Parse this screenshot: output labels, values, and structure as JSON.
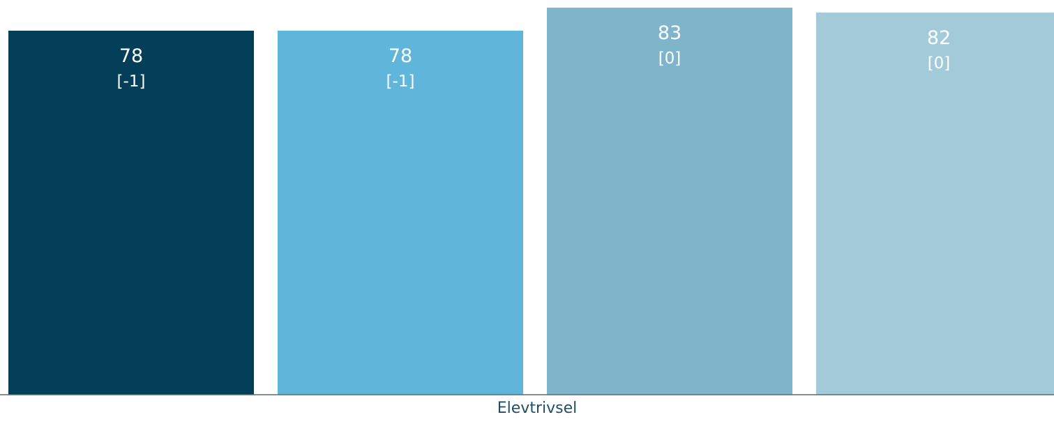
{
  "chart_data": {
    "type": "bar",
    "categories": [
      "Elevtrivsel"
    ],
    "series": [
      {
        "values": [
          78
        ],
        "change_label": "[-1]",
        "color": "#033f59"
      },
      {
        "values": [
          78
        ],
        "change_label": "[-1]",
        "color": "#5fb5da"
      },
      {
        "values": [
          83
        ],
        "change_label": "[0]",
        "color": "#7fb5ca"
      },
      {
        "values": [
          82
        ],
        "change_label": "[0]",
        "color": "#a2cad8"
      }
    ],
    "xlabel": "Elevtrivsel",
    "ylim": [
      0,
      85
    ],
    "grid": false,
    "legend": "none",
    "axis_color": "#5a6b78",
    "label_color": "#ffffff",
    "category_label_color": "#1f4e66"
  }
}
